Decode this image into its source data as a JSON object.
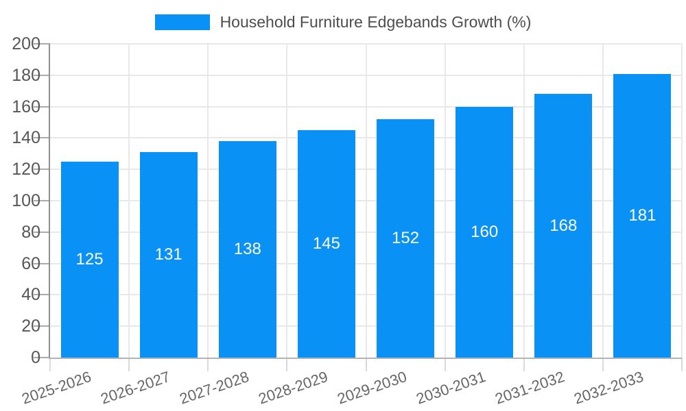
{
  "legend": {
    "label": "Household Furniture Edgebands Growth (%)"
  },
  "chart_data": {
    "type": "bar",
    "title": "Household Furniture Edgebands Growth (%)",
    "series_name": "Household Furniture Edgebands Growth (%)",
    "categories": [
      "2025-2026",
      "2026-2027",
      "2027-2028",
      "2028-2029",
      "2029-2030",
      "2030-2031",
      "2031-2032",
      "2032-2033"
    ],
    "values": [
      125,
      131,
      138,
      145,
      152,
      160,
      168,
      181
    ],
    "xlabel": "",
    "ylabel": "",
    "ylim": [
      0,
      200
    ],
    "ytick_step": 20,
    "yticks": [
      0,
      20,
      40,
      60,
      80,
      100,
      120,
      140,
      160,
      180,
      200
    ],
    "grid": true,
    "legend_position": "top-center",
    "bar_label_position": "inside-center",
    "x_label_rotation_deg": -19,
    "colors": {
      "bar": "#0991F5",
      "bar_label": "#ffffff",
      "grid": "#e8e8e8",
      "axis_y": "#8f8f8f",
      "axis_x": "#b3b3b3",
      "tick": "#ababab",
      "tick_light": "#d9d9d9",
      "axis_text": "#565656",
      "axis_text_x": "#666666",
      "legend_text": "#4d4d4d",
      "background": "#ffffff"
    }
  }
}
